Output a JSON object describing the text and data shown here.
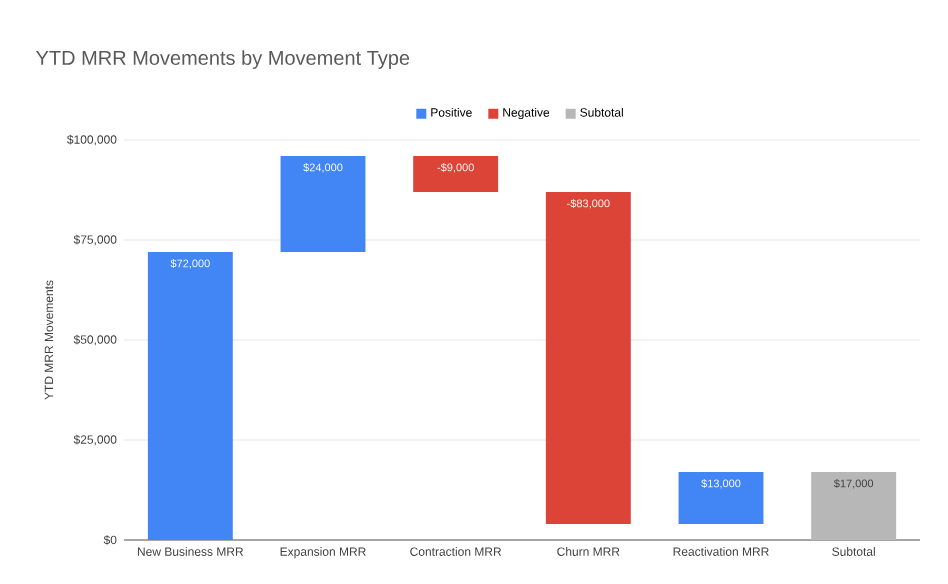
{
  "chart_data": {
    "type": "bar",
    "title": "YTD MRR Movements by Movement Type",
    "ylabel": "YTD MRR Movements",
    "categories": [
      "New Business MRR",
      "Expansion MRR",
      "Contraction MRR",
      "Churn MRR",
      "Reactivation MRR",
      "Subtotal"
    ],
    "series": [
      {
        "name": "Positive",
        "color": "#4285f4",
        "values": [
          72000,
          24000,
          null,
          null,
          13000,
          null
        ],
        "base": [
          0,
          72000,
          null,
          null,
          4000,
          null
        ],
        "value_labels": [
          "$72,000",
          "$24,000",
          null,
          null,
          "$13,000",
          null
        ]
      },
      {
        "name": "Negative",
        "color": "#db4437",
        "values": [
          null,
          null,
          -9000,
          -83000,
          null,
          null
        ],
        "base": [
          null,
          null,
          96000,
          87000,
          null,
          null
        ],
        "value_labels": [
          null,
          null,
          "-$9,000",
          "-$83,000",
          null,
          null
        ]
      },
      {
        "name": "Subtotal",
        "color": "#b7b7b7",
        "values": [
          null,
          null,
          null,
          null,
          null,
          17000
        ],
        "base": [
          null,
          null,
          null,
          null,
          null,
          0
        ],
        "value_labels": [
          null,
          null,
          null,
          null,
          null,
          "$17,000"
        ]
      }
    ],
    "ylim": [
      0,
      100000
    ],
    "yticks": [
      {
        "value": 0,
        "label": "$0"
      },
      {
        "value": 25000,
        "label": "$25,000"
      },
      {
        "value": 50000,
        "label": "$50,000"
      },
      {
        "value": 75000,
        "label": "$75,000"
      },
      {
        "value": 100000,
        "label": "$100,000"
      }
    ],
    "grid": "y",
    "legend": "top"
  }
}
